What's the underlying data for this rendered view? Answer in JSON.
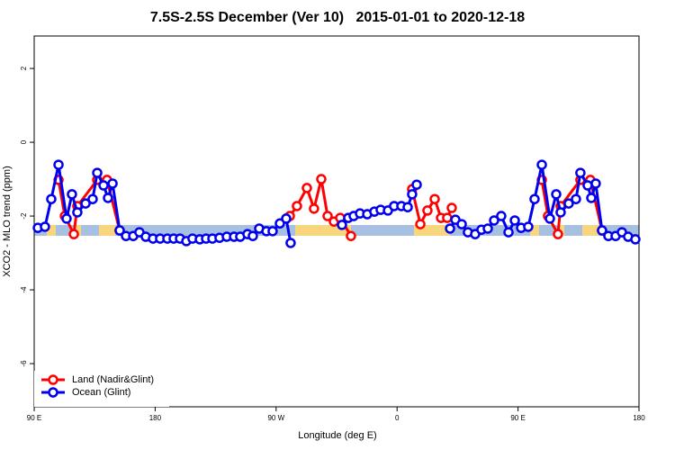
{
  "chart_data": {
    "type": "line",
    "title": "7.5S-2.5S December (Ver 10)   2015-01-01 to 2020-12-18",
    "xlabel": "Longitude (deg E)",
    "ylabel": "XCO2 - MLO trend (ppm)",
    "xlim": [
      90,
      540
    ],
    "ylim": [
      -7.17,
      2.88
    ],
    "xticks": [
      {
        "value": 90,
        "label": "90 E"
      },
      {
        "value": 180,
        "label": "180"
      },
      {
        "value": 270,
        "label": "90 W"
      },
      {
        "value": 360,
        "label": "0"
      },
      {
        "value": 450,
        "label": "90 E"
      },
      {
        "value": 540,
        "label": "180"
      }
    ],
    "yticks": [
      2,
      0,
      -2,
      -4,
      -6
    ],
    "legend": "bottom-left",
    "series": [
      {
        "name": "Land (Nadir&Glint)",
        "color": "#ff0000",
        "x": [
          108.1,
          112.8,
          119.5,
          122.1,
          136.9,
          144.2,
          153.6,
          null,
          277.5,
          280.2,
          285.5,
          292.9,
          298.2,
          303.6,
          308.3,
          313.0,
          317.7,
          325.7,
          null,
          371.2,
          377.3,
          382.6,
          388.0,
          392.7,
          397.3,
          400.7,
          null,
          467.7,
          472.3,
          479.7,
          481.7,
          496.4,
          503.8,
          512.5
        ],
        "values": [
          -1.02,
          -2.0,
          -2.49,
          -1.73,
          -1.02,
          -1.02,
          -2.39,
          null,
          -2.07,
          -2.0,
          -1.73,
          -1.24,
          -1.8,
          -1.0,
          -2.0,
          -2.15,
          -2.05,
          -2.54,
          null,
          -1.27,
          -2.22,
          -1.85,
          -1.54,
          -2.05,
          -2.05,
          -1.78,
          null,
          -1.02,
          -2.0,
          -2.49,
          -1.73,
          -1.02,
          -1.02,
          -2.39
        ]
      },
      {
        "name": "Ocean (Glint)",
        "color": "#0000ee",
        "x": [
          92.7,
          98.0,
          102.7,
          108.1,
          114.1,
          118.1,
          122.1,
          128.2,
          133.5,
          136.9,
          141.6,
          144.9,
          148.3,
          153.6,
          158.3,
          163.7,
          168.3,
          173.0,
          178.4,
          183.7,
          189.1,
          193.8,
          198.5,
          203.2,
          207.8,
          213.2,
          217.9,
          222.6,
          227.9,
          233.3,
          238.7,
          243.3,
          248.7,
          252.7,
          257.4,
          262.8,
          267.4,
          272.8,
          277.5,
          280.8,
          null,
          319.0,
          323.7,
          327.7,
          332.4,
          337.8,
          343.1,
          347.8,
          353.2,
          357.8,
          363.2,
          367.9,
          371.2,
          374.6,
          null,
          399.4,
          403.4,
          408.1,
          412.7,
          418.1,
          422.8,
          427.5,
          432.2,
          437.5,
          442.9,
          447.6,
          452.3,
          457.6,
          462.3,
          467.7,
          473.7,
          478.4,
          481.7,
          487.7,
          493.1,
          496.4,
          501.8,
          504.5,
          507.8,
          512.5,
          517.2,
          522.6,
          527.3,
          531.9,
          537.3
        ],
        "values": [
          -2.32,
          -2.29,
          -1.54,
          -0.61,
          -2.07,
          -1.41,
          -1.9,
          -1.66,
          -1.54,
          -0.83,
          -1.17,
          -1.51,
          -1.12,
          -2.39,
          -2.54,
          -2.54,
          -2.44,
          -2.56,
          -2.61,
          -2.61,
          -2.61,
          -2.61,
          -2.61,
          -2.68,
          -2.61,
          -2.63,
          -2.61,
          -2.61,
          -2.59,
          -2.56,
          -2.56,
          -2.56,
          -2.49,
          -2.54,
          -2.34,
          -2.41,
          -2.41,
          -2.2,
          -2.07,
          -2.73,
          null,
          -2.24,
          -2.05,
          -2.0,
          -1.93,
          -1.95,
          -1.88,
          -1.83,
          -1.85,
          -1.73,
          -1.73,
          -1.76,
          -1.41,
          -1.15,
          null,
          -2.34,
          -2.1,
          -2.22,
          -2.44,
          -2.49,
          -2.37,
          -2.34,
          -2.12,
          -2.0,
          -2.44,
          -2.12,
          -2.32,
          -2.29,
          -1.54,
          -0.61,
          -2.07,
          -1.41,
          -1.9,
          -1.66,
          -1.54,
          -0.83,
          -1.17,
          -1.51,
          -1.12,
          -2.39,
          -2.54,
          -2.54,
          -2.44,
          -2.56,
          -2.63
        ]
      }
    ]
  }
}
